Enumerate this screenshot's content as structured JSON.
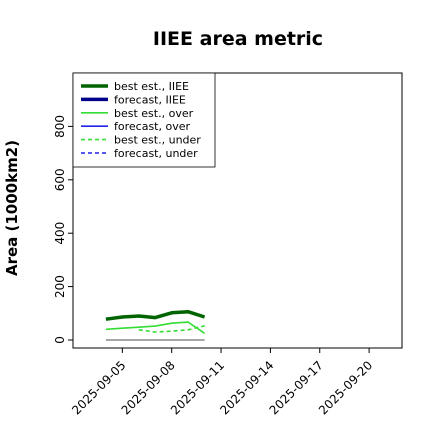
{
  "chart_data": {
    "type": "line",
    "title": "IIEE area metric",
    "xlabel": "",
    "ylabel": "Area (1000km2)",
    "ylim": [
      -30,
      1000
    ],
    "yticks": [
      0,
      200,
      400,
      600,
      800
    ],
    "x_tick_labels": [
      "2025-09-05",
      "2025-09-08",
      "2025-09-11",
      "2025-09-14",
      "2025-09-17",
      "2025-09-20"
    ],
    "x_tick_colors": [
      "#000000",
      "#000000",
      "#228B22",
      "#000000",
      "#000000",
      "#000000"
    ],
    "x_range": [
      "2025-09-02",
      "2025-09-22"
    ],
    "grid": false,
    "legend_position": "top-left",
    "series": [
      {
        "name": "best est., IIEE",
        "color": "#006400",
        "width": 3.5,
        "dash": "",
        "x": [
          "2025-09-04",
          "2025-09-05",
          "2025-09-06",
          "2025-09-07",
          "2025-09-08",
          "2025-09-09",
          "2025-09-10"
        ],
        "values": [
          78,
          86,
          90,
          84,
          102,
          106,
          86
        ]
      },
      {
        "name": "forecast, IIEE",
        "color": "#00008B",
        "width": 3.5,
        "dash": "",
        "x": [],
        "values": []
      },
      {
        "name": "best est., over",
        "color": "#33dd33",
        "width": 1.6,
        "dash": "",
        "x": [
          "2025-09-04",
          "2025-09-05",
          "2025-09-06",
          "2025-09-07",
          "2025-09-08",
          "2025-09-09",
          "2025-09-10"
        ],
        "values": [
          40,
          44,
          48,
          52,
          63,
          67,
          25
        ]
      },
      {
        "name": "forecast, over",
        "color": "#2222ee",
        "width": 1.6,
        "dash": "",
        "x": [],
        "values": []
      },
      {
        "name": "best est., under",
        "color": "#33dd33",
        "width": 1.6,
        "dash": "4,3",
        "x": [
          "2025-09-06",
          "2025-09-07",
          "2025-09-08",
          "2025-09-09",
          "2025-09-10"
        ],
        "values": [
          38,
          30,
          33,
          38,
          53
        ]
      },
      {
        "name": "forecast, under",
        "color": "#2222ee",
        "width": 1.6,
        "dash": "4,3",
        "x": [],
        "values": []
      }
    ],
    "reference_line": {
      "color": "#888888",
      "x": [
        "2025-09-04",
        "2025-09-10"
      ],
      "value": 0
    }
  }
}
